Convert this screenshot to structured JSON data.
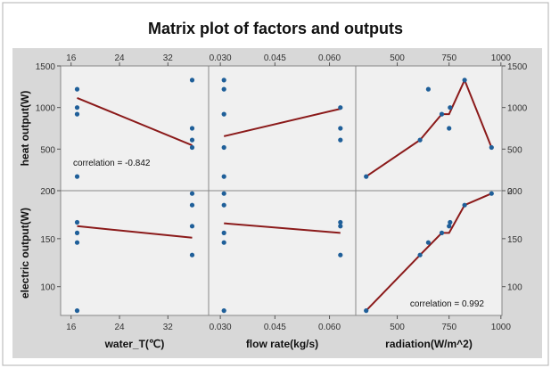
{
  "chart_data": {
    "type": "scatter",
    "title": "Matrix plot of factors and outputs",
    "variant": "matrix plot with fitted lines",
    "colors": {
      "points": "#1f5f99",
      "fit_line": "#8b1a1a",
      "panel_bg": "#f0f0f0",
      "outer_bg": "#d8d8d8",
      "frame": "#888888"
    },
    "grid": false,
    "factors": [
      {
        "key": "water_T",
        "label": "water_T(℃)",
        "ticks": [
          "16",
          "24",
          "32"
        ],
        "tick_values": [
          16,
          24,
          32
        ],
        "range": [
          15.3,
          37.7
        ]
      },
      {
        "key": "flow_rate",
        "label": "flow rate(kg/s)",
        "ticks": [
          "0.030",
          "0.045",
          "0.060"
        ],
        "tick_values": [
          0.03,
          0.045,
          0.06
        ],
        "range": [
          0.0285,
          0.0655
        ]
      },
      {
        "key": "radiation",
        "label": "radiation(W/m^2)",
        "ticks": [
          "500",
          "750",
          "1000"
        ],
        "tick_values": [
          500,
          750,
          1000
        ],
        "range": [
          330,
          975
        ]
      }
    ],
    "outputs": [
      {
        "key": "heat",
        "label": "heat output(W)",
        "ticks": [
          "0",
          "500",
          "1000",
          "1500"
        ],
        "tick_values": [
          0,
          500,
          1000,
          1500
        ],
        "range": [
          0,
          1500
        ]
      },
      {
        "key": "electric",
        "label": "electric output(W)",
        "ticks": [
          "100",
          "150",
          "200"
        ],
        "tick_values": [
          100,
          150,
          200
        ],
        "range": [
          70,
          200
        ]
      }
    ],
    "observations": [
      {
        "water_T": 17.0,
        "flow_rate": 0.031,
        "radiation": 350,
        "heat": 170,
        "electric": 75
      },
      {
        "water_T": 36.0,
        "flow_rate": 0.063,
        "radiation": 610,
        "heat": 610,
        "electric": 133
      },
      {
        "water_T": 17.0,
        "flow_rate": 0.031,
        "radiation": 650,
        "heat": 1220,
        "electric": 146
      },
      {
        "water_T": 17.0,
        "flow_rate": 0.031,
        "radiation": 715,
        "heat": 920,
        "electric": 156
      },
      {
        "water_T": 17.0,
        "flow_rate": 0.063,
        "radiation": 755,
        "heat": 1000,
        "electric": 167
      },
      {
        "water_T": 36.0,
        "flow_rate": 0.063,
        "radiation": 750,
        "heat": 750,
        "electric": 163
      },
      {
        "water_T": 36.0,
        "flow_rate": 0.031,
        "radiation": 825,
        "heat": 1330,
        "electric": 185
      },
      {
        "water_T": 36.0,
        "flow_rate": 0.031,
        "radiation": 955,
        "heat": 520,
        "electric": 197
      }
    ],
    "fit_lines": {
      "heat": {
        "water_T": [
          [
            17.0,
            1115
          ],
          [
            36.0,
            545
          ]
        ],
        "flow_rate": [
          [
            0.031,
            655
          ],
          [
            0.063,
            985
          ]
        ],
        "radiation": [
          [
            350,
            170
          ],
          [
            610,
            610
          ],
          [
            715,
            920
          ],
          [
            750,
            920
          ],
          [
            825,
            1330
          ],
          [
            955,
            520
          ]
        ]
      },
      "electric": {
        "water_T": [
          [
            17.0,
            163
          ],
          [
            36.0,
            151
          ]
        ],
        "flow_rate": [
          [
            0.031,
            166
          ],
          [
            0.063,
            156
          ]
        ],
        "radiation": [
          [
            350,
            75
          ],
          [
            610,
            133
          ],
          [
            715,
            156
          ],
          [
            750,
            156
          ],
          [
            825,
            185
          ],
          [
            955,
            197
          ]
        ]
      }
    },
    "annotations": [
      {
        "panel": "heat-water_T",
        "text": "correlation = -0.842"
      },
      {
        "panel": "electric-radiation",
        "text": "correlation = 0.992"
      }
    ]
  }
}
